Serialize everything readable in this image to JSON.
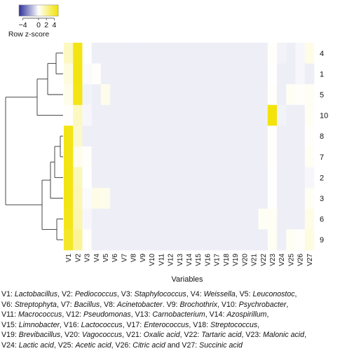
{
  "chart_data": {
    "type": "heatmap",
    "key": {
      "title": "Row z-score",
      "tick_labels": [
        "−4",
        "0",
        "2",
        "4"
      ],
      "tick_values": [
        -4,
        0,
        2,
        4
      ],
      "range": [
        -5,
        5
      ],
      "colors": {
        "low": "#2b2f9a",
        "mid": "#ffffff",
        "high": "#f2e200"
      }
    },
    "xlabel": "Variables",
    "columns": [
      "V1",
      "V2",
      "V3",
      "V4",
      "V5",
      "V6",
      "V7",
      "V8",
      "V9",
      "V10",
      "V11",
      "V12",
      "V13",
      "V14",
      "V15",
      "V16",
      "V17",
      "V18",
      "V19",
      "V20",
      "V21",
      "V22",
      "V23",
      "V24",
      "V25",
      "V26",
      "V27"
    ],
    "rows": [
      "4",
      "1",
      "5",
      "10",
      "8",
      "7",
      "2",
      "3",
      "6",
      "9"
    ],
    "values": [
      [
        1.2,
        4.6,
        0.0,
        -0.4,
        -0.4,
        -0.4,
        -0.4,
        -0.4,
        -0.4,
        -0.4,
        -0.4,
        -0.4,
        -0.4,
        -0.4,
        -0.4,
        -0.4,
        -0.4,
        -0.4,
        -0.4,
        -0.4,
        -0.4,
        -0.4,
        0.1,
        -0.3,
        -0.4,
        -0.2,
        0.5
      ],
      [
        0.6,
        4.7,
        -0.1,
        0.1,
        -0.4,
        -0.4,
        -0.4,
        -0.4,
        -0.4,
        -0.4,
        -0.4,
        -0.4,
        -0.4,
        -0.4,
        -0.4,
        -0.4,
        -0.4,
        -0.4,
        -0.4,
        -0.4,
        -0.4,
        -0.4,
        0.0,
        -0.4,
        -0.4,
        -0.2,
        -0.4
      ],
      [
        0.4,
        4.6,
        -0.3,
        -0.4,
        0.4,
        -0.4,
        -0.4,
        -0.4,
        -0.4,
        -0.4,
        -0.4,
        -0.4,
        -0.4,
        -0.4,
        -0.4,
        -0.4,
        -0.4,
        -0.4,
        -0.4,
        -0.4,
        -0.4,
        -0.4,
        0.1,
        -0.4,
        0.2,
        0.1,
        0.2
      ],
      [
        0.1,
        1.2,
        -0.2,
        -0.4,
        -0.4,
        -0.4,
        -0.4,
        -0.4,
        -0.4,
        -0.4,
        -0.4,
        -0.4,
        -0.4,
        -0.4,
        -0.4,
        -0.4,
        -0.4,
        -0.4,
        -0.4,
        -0.4,
        -0.4,
        -0.4,
        4.8,
        -0.3,
        -0.4,
        -0.4,
        0.2
      ],
      [
        4.6,
        1.0,
        -0.4,
        -0.4,
        -0.4,
        -0.4,
        -0.4,
        -0.4,
        -0.4,
        -0.4,
        -0.4,
        -0.4,
        -0.4,
        -0.4,
        -0.4,
        -0.4,
        -0.4,
        -0.4,
        -0.4,
        -0.4,
        -0.4,
        -0.4,
        0.1,
        -0.4,
        -0.4,
        -0.4,
        0.1
      ],
      [
        4.6,
        0.4,
        0.1,
        -0.4,
        -0.4,
        -0.4,
        -0.4,
        -0.4,
        -0.4,
        -0.4,
        -0.4,
        -0.4,
        -0.4,
        -0.4,
        -0.4,
        -0.4,
        -0.4,
        -0.4,
        -0.4,
        -0.4,
        -0.4,
        -0.4,
        0.1,
        -0.4,
        -0.4,
        -0.4,
        0.2
      ],
      [
        4.6,
        1.4,
        0.0,
        -0.4,
        -0.4,
        -0.4,
        -0.4,
        -0.4,
        -0.4,
        -0.4,
        -0.4,
        -0.4,
        -0.4,
        -0.4,
        -0.4,
        -0.4,
        -0.4,
        -0.4,
        -0.4,
        -0.4,
        -0.4,
        -0.4,
        0.0,
        -0.4,
        -0.4,
        -0.4,
        -0.2
      ],
      [
        4.6,
        1.5,
        -0.1,
        0.5,
        0.4,
        -0.4,
        -0.4,
        -0.4,
        -0.4,
        -0.4,
        -0.4,
        -0.4,
        -0.4,
        -0.4,
        -0.4,
        -0.4,
        -0.4,
        -0.4,
        -0.4,
        -0.4,
        -0.4,
        -0.4,
        0.0,
        -0.4,
        -0.4,
        -0.4,
        0.2
      ],
      [
        4.5,
        1.6,
        -0.2,
        -0.4,
        -0.4,
        -0.4,
        -0.4,
        -0.4,
        -0.4,
        -0.4,
        -0.4,
        -0.4,
        -0.4,
        -0.4,
        -0.4,
        -0.4,
        -0.4,
        -0.4,
        -0.4,
        -0.4,
        -0.4,
        0.2,
        0.2,
        -0.4,
        -0.4,
        -0.4,
        0.5
      ],
      [
        4.2,
        2.0,
        0.1,
        -0.4,
        -0.4,
        -0.4,
        -0.4,
        -0.4,
        -0.4,
        -0.4,
        -0.4,
        -0.4,
        -0.4,
        -0.4,
        -0.4,
        -0.4,
        -0.4,
        -0.4,
        -0.4,
        -0.4,
        -0.4,
        -0.4,
        0.2,
        -0.4,
        0.2,
        0.1,
        0.6
      ]
    ],
    "grid": false,
    "legend_placement": "top-left",
    "dendrogram_side": "left"
  },
  "caption": {
    "lines": [
      [
        {
          "t": "V1: ",
          "i": false
        },
        {
          "t": "Lactobacillus",
          "i": true
        },
        {
          "t": ", V2: ",
          "i": false
        },
        {
          "t": "Pediococcus",
          "i": true
        },
        {
          "t": ", V3: ",
          "i": false
        },
        {
          "t": "Staphylococcus",
          "i": true
        },
        {
          "t": ", V4: ",
          "i": false
        },
        {
          "t": "Weissella",
          "i": true
        },
        {
          "t": ", V5: ",
          "i": false
        },
        {
          "t": "Leuconostoc",
          "i": true
        },
        {
          "t": ",",
          "i": false
        }
      ],
      [
        {
          "t": "V6: ",
          "i": false
        },
        {
          "t": "Streptophyta",
          "i": true
        },
        {
          "t": ", V7: ",
          "i": false
        },
        {
          "t": "Bacillus",
          "i": true
        },
        {
          "t": ", V8: ",
          "i": false
        },
        {
          "t": "Acinetobacter",
          "i": true
        },
        {
          "t": ". V9: ",
          "i": false
        },
        {
          "t": "Brochothrix",
          "i": true
        },
        {
          "t": ", V10: ",
          "i": false
        },
        {
          "t": "Psychrobacter",
          "i": true
        },
        {
          "t": ",",
          "i": false
        }
      ],
      [
        {
          "t": "V11: ",
          "i": false
        },
        {
          "t": "Macrococcus",
          "i": true
        },
        {
          "t": ", V12: ",
          "i": false
        },
        {
          "t": "Pseudomonas",
          "i": true
        },
        {
          "t": ", V13: ",
          "i": false
        },
        {
          "t": "Carnobacterium",
          "i": true
        },
        {
          "t": ", V14: ",
          "i": false
        },
        {
          "t": "Azospirillum",
          "i": true
        },
        {
          "t": ",",
          "i": false
        }
      ],
      [
        {
          "t": "V15: ",
          "i": false
        },
        {
          "t": "Limnobacter",
          "i": true
        },
        {
          "t": ", V16: ",
          "i": false
        },
        {
          "t": "Lactococcus",
          "i": true
        },
        {
          "t": ", V17: ",
          "i": false
        },
        {
          "t": "Enterococcus",
          "i": true
        },
        {
          "t": ", V18: ",
          "i": false
        },
        {
          "t": "Streptococcus",
          "i": true
        },
        {
          "t": ",",
          "i": false
        }
      ],
      [
        {
          "t": "V19: ",
          "i": false
        },
        {
          "t": "Brevibacillus",
          "i": true
        },
        {
          "t": ", V20: ",
          "i": false
        },
        {
          "t": "Vagococcus",
          "i": true
        },
        {
          "t": ", V21: ",
          "i": false
        },
        {
          "t": "Oxalic acid",
          "i": true
        },
        {
          "t": ", V22: ",
          "i": false
        },
        {
          "t": "Tartaric acid",
          "i": true
        },
        {
          "t": ", V23: ",
          "i": false
        },
        {
          "t": "Malonic acid",
          "i": true
        },
        {
          "t": ",",
          "i": false
        }
      ],
      [
        {
          "t": "V24: ",
          "i": false
        },
        {
          "t": "Lactic acid",
          "i": true
        },
        {
          "t": ", V25: ",
          "i": false
        },
        {
          "t": "Acetic acid",
          "i": true
        },
        {
          "t": ", V26: ",
          "i": false
        },
        {
          "t": "Citric acid",
          "i": true
        },
        {
          "t": " and V27: ",
          "i": false
        },
        {
          "t": "Succinic acid",
          "i": true
        }
      ]
    ]
  }
}
